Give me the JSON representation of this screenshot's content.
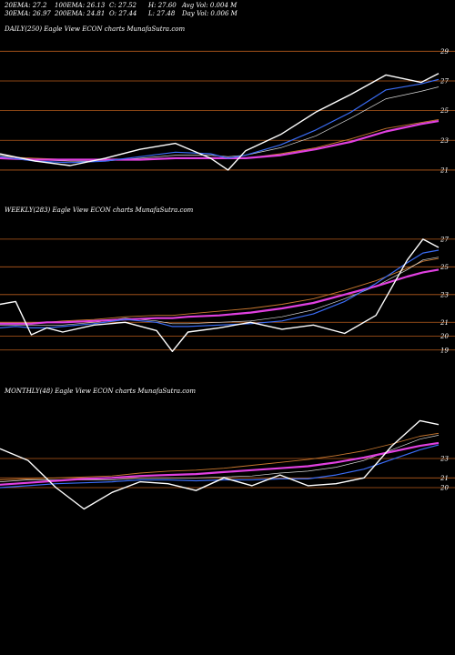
{
  "header": {
    "row1": [
      "20EMA: 27.2",
      "100EMA: 26.13",
      "C: 27.52",
      "H: 27.60",
      "Avg Vol: 0.004  M"
    ],
    "row2": [
      "30EMA: 26.97",
      "200EMA: 24.81",
      "O: 27.44",
      "L: 27.48",
      "Day Vol: 0.006  M"
    ]
  },
  "colors": {
    "background": "#000000",
    "price": "#ffffff",
    "ema_blue": "#3a6cf5",
    "ema_magenta": "#e040e0",
    "ema_brown": "#c87830",
    "ema_light": "#d8d8d8",
    "grid": "#b85c1c"
  },
  "chart_data": [
    {
      "type": "line",
      "title": "DAILY(250) Eagle  View  ECON  charts MunafaSutra.com",
      "yticks": [
        29,
        27,
        25,
        23,
        21
      ],
      "ylim": [
        20.2,
        30.0
      ],
      "x": [
        0,
        20,
        40,
        60,
        80,
        100,
        120,
        130,
        140,
        160,
        180,
        200,
        220,
        240,
        250
      ],
      "series": [
        {
          "role": "price",
          "values": [
            22.1,
            21.6,
            21.3,
            21.8,
            22.4,
            22.8,
            21.8,
            21.0,
            22.3,
            23.4,
            24.9,
            26.1,
            27.4,
            26.9,
            27.5
          ]
        },
        {
          "role": "ema_blue",
          "values": [
            21.9,
            21.6,
            21.5,
            21.6,
            21.9,
            22.2,
            22.1,
            21.8,
            22.0,
            22.7,
            23.7,
            24.9,
            26.4,
            26.8,
            27.1
          ]
        },
        {
          "role": "ema_light",
          "values": [
            22.0,
            21.7,
            21.6,
            21.6,
            21.8,
            22.0,
            22.0,
            21.9,
            22.0,
            22.5,
            23.3,
            24.5,
            25.8,
            26.3,
            26.6
          ]
        },
        {
          "role": "ema_brown",
          "values": [
            21.9,
            21.8,
            21.7,
            21.7,
            21.7,
            21.8,
            21.8,
            21.8,
            21.8,
            22.1,
            22.5,
            23.1,
            23.8,
            24.2,
            24.4
          ]
        },
        {
          "role": "ema_magenta",
          "values": [
            21.8,
            21.7,
            21.7,
            21.7,
            21.7,
            21.8,
            21.8,
            21.8,
            21.8,
            22.0,
            22.4,
            22.9,
            23.6,
            24.1,
            24.3
          ]
        }
      ]
    },
    {
      "type": "line",
      "title": "WEEKLY(283) Eagle  View  ECON  charts MunafaSutra.com",
      "yticks": [
        27,
        25,
        23,
        21,
        20,
        19
      ],
      "ylim": [
        18.0,
        28.5
      ],
      "x": [
        0,
        10,
        20,
        30,
        40,
        60,
        80,
        100,
        110,
        120,
        140,
        160,
        180,
        200,
        220,
        240,
        260,
        270,
        280
      ],
      "series": [
        {
          "role": "price",
          "values": [
            22.3,
            22.5,
            20.1,
            20.6,
            20.3,
            20.8,
            21.0,
            20.4,
            18.9,
            20.3,
            20.6,
            21.0,
            20.5,
            20.8,
            20.2,
            21.5,
            25.5,
            27.0,
            26.4
          ]
        },
        {
          "role": "ema_blue",
          "values": [
            20.6,
            20.7,
            20.6,
            20.6,
            20.7,
            20.9,
            21.2,
            21.0,
            20.7,
            20.7,
            20.8,
            20.9,
            21.1,
            21.6,
            22.5,
            23.8,
            25.3,
            26.0,
            26.2
          ]
        },
        {
          "role": "ema_light",
          "values": [
            20.8,
            20.8,
            20.8,
            20.8,
            20.8,
            21.0,
            21.3,
            21.1,
            20.9,
            20.9,
            21.0,
            21.1,
            21.4,
            21.9,
            22.7,
            23.6,
            24.8,
            25.5,
            25.7
          ]
        },
        {
          "role": "ema_brown",
          "values": [
            21.0,
            21.0,
            21.0,
            21.0,
            21.1,
            21.2,
            21.4,
            21.5,
            21.5,
            21.6,
            21.8,
            22.0,
            22.3,
            22.7,
            23.3,
            24.0,
            24.9,
            25.4,
            25.6
          ]
        },
        {
          "role": "ema_magenta",
          "values": [
            20.9,
            20.9,
            20.9,
            21.0,
            21.0,
            21.1,
            21.2,
            21.3,
            21.3,
            21.4,
            21.5,
            21.7,
            22.0,
            22.4,
            23.0,
            23.6,
            24.3,
            24.6,
            24.8
          ]
        }
      ]
    },
    {
      "type": "line",
      "title": "MONTHLY(48) Eagle  View  ECON  charts MunafaSutra.com",
      "yticks": [
        23,
        21,
        20
      ],
      "ylim": [
        14.0,
        29.0
      ],
      "x": [
        0,
        3,
        6,
        9,
        12,
        15,
        18,
        21,
        24,
        27,
        30,
        33,
        36,
        39,
        42,
        45,
        47
      ],
      "series": [
        {
          "role": "price",
          "values": [
            24.0,
            22.8,
            20.0,
            17.8,
            19.5,
            20.6,
            20.4,
            19.7,
            21.0,
            20.2,
            21.3,
            20.2,
            20.4,
            21.0,
            24.3,
            26.9,
            26.5
          ]
        },
        {
          "role": "ema_blue",
          "values": [
            20.0,
            20.2,
            20.4,
            20.5,
            20.6,
            20.8,
            20.8,
            20.7,
            20.8,
            20.8,
            20.9,
            20.9,
            21.3,
            21.9,
            22.9,
            23.9,
            24.4
          ]
        },
        {
          "role": "ema_light",
          "values": [
            20.6,
            20.8,
            20.8,
            20.8,
            20.8,
            21.0,
            21.0,
            21.0,
            21.1,
            21.2,
            21.5,
            21.7,
            22.1,
            22.8,
            23.9,
            25.0,
            25.4
          ]
        },
        {
          "role": "ema_brown",
          "values": [
            20.8,
            20.9,
            21.0,
            21.1,
            21.2,
            21.5,
            21.7,
            21.8,
            22.0,
            22.3,
            22.6,
            22.9,
            23.3,
            23.8,
            24.5,
            25.3,
            25.6
          ]
        },
        {
          "role": "ema_magenta",
          "values": [
            20.3,
            20.5,
            20.7,
            20.9,
            21.0,
            21.2,
            21.3,
            21.4,
            21.6,
            21.8,
            22.0,
            22.2,
            22.6,
            23.1,
            23.7,
            24.3,
            24.6
          ]
        }
      ]
    }
  ]
}
